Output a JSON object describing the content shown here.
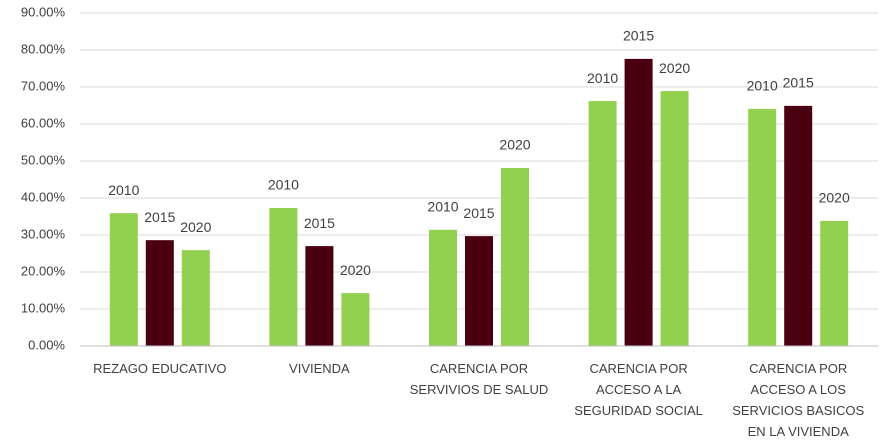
{
  "chart_data": {
    "type": "bar",
    "categories": [
      "REZAGO EDUCATIVO",
      "VIVIENDA",
      "CARENCIA POR\nSERVIVIOS DE SALUD",
      "CARENCIA POR\nACCESO A LA\nSEGURIDAD SOCIAL",
      "CARENCIA POR\nACCESO A LOS\nSERVICIOS BASICOS\nEN LA VIVIENDA"
    ],
    "series": [
      {
        "name": "2010",
        "color": "#92d050",
        "values": [
          35.9,
          37.3,
          31.4,
          66.2,
          64.1
        ]
      },
      {
        "name": "2015",
        "color": "#4a0010",
        "values": [
          28.6,
          27.0,
          29.7,
          77.6,
          64.9
        ]
      },
      {
        "name": "2020",
        "color": "#92d050",
        "values": [
          25.9,
          14.3,
          48.1,
          68.9,
          33.8
        ]
      }
    ],
    "ylim": [
      0,
      90
    ],
    "yticks": [
      {
        "value": 0,
        "label": "0.00%"
      },
      {
        "value": 10,
        "label": "10.00%"
      },
      {
        "value": 20,
        "label": "20.00%"
      },
      {
        "value": 30,
        "label": "30.00%"
      },
      {
        "value": 40,
        "label": "40.00%"
      },
      {
        "value": 50,
        "label": "50.00%"
      },
      {
        "value": 60,
        "label": "60.00%"
      },
      {
        "value": 70,
        "label": "70.00%"
      },
      {
        "value": 80,
        "label": "80.00%"
      },
      {
        "value": 90,
        "label": "90.00%"
      }
    ],
    "grid": true
  }
}
